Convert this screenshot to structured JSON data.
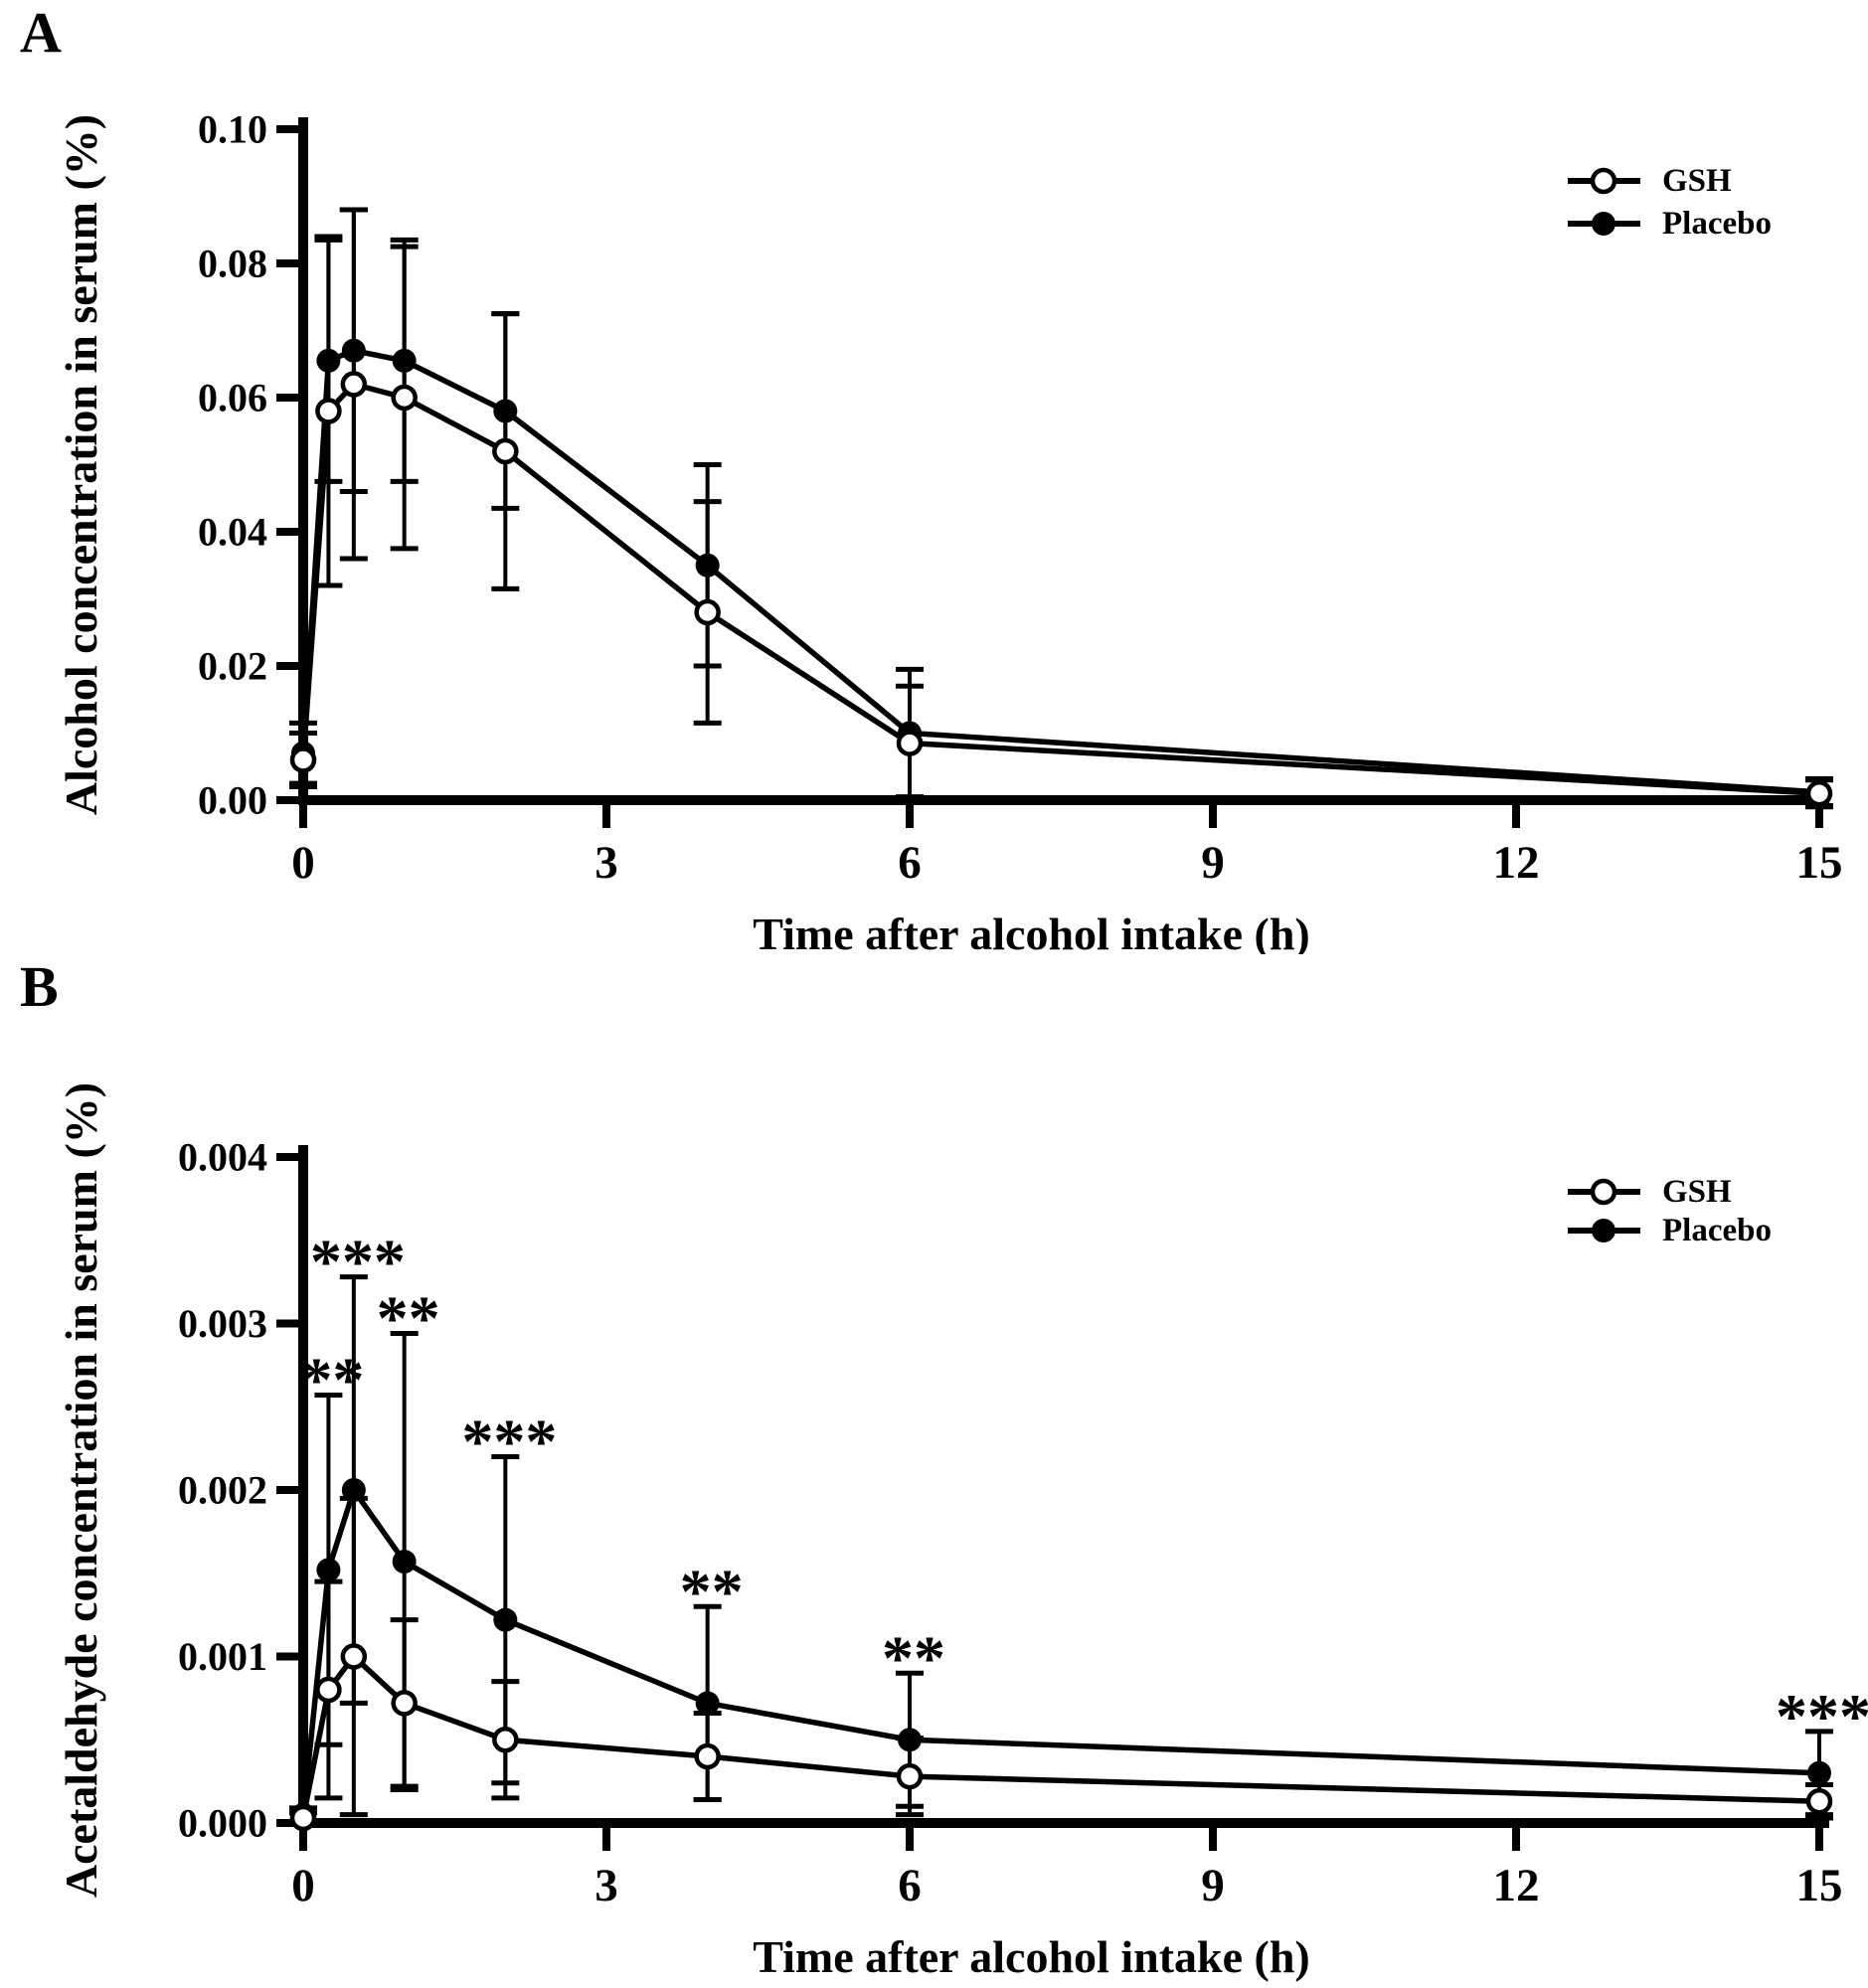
{
  "page": {
    "background": "#ffffff",
    "ink": "#000000"
  },
  "panels": [
    {
      "label": "A"
    },
    {
      "label": "B"
    }
  ],
  "chart_data": [
    {
      "type": "line",
      "panel": "A",
      "title": "",
      "xlabel": "Time after alcohol intake (h)",
      "ylabel": "Alcohol concentration in serum (%)",
      "xlim": [
        0,
        15
      ],
      "ylim": [
        0,
        0.1
      ],
      "xticks": [
        0,
        3,
        6,
        9,
        12,
        15
      ],
      "xtick_labels": [
        "0",
        "3",
        "6",
        "9",
        "12",
        "15"
      ],
      "yticks": [
        0,
        0.02,
        0.04,
        0.06,
        0.08,
        0.1
      ],
      "ytick_labels": [
        "0.00",
        "0.02",
        "0.04",
        "0.06",
        "0.08",
        "0.10"
      ],
      "grid": false,
      "x": [
        0,
        0.25,
        0.5,
        1,
        2,
        4,
        6,
        15
      ],
      "series": [
        {
          "name": "Placebo",
          "marker": "filled-circle",
          "values": [
            0.007,
            0.0655,
            0.067,
            0.0655,
            0.058,
            0.035,
            0.01,
            0.0012
          ],
          "errors": [
            0.0045,
            0.018,
            0.021,
            0.018,
            0.0145,
            0.015,
            0.0095,
            0.002
          ]
        },
        {
          "name": "GSH",
          "marker": "open-circle",
          "values": [
            0.006,
            0.058,
            0.062,
            0.06,
            0.052,
            0.028,
            0.0085,
            0.001
          ],
          "errors": [
            0.004,
            0.026,
            0.026,
            0.0225,
            0.0205,
            0.0165,
            0.0085,
            0.002
          ]
        }
      ],
      "legend": {
        "position": "top-right",
        "entries": [
          {
            "name": "GSH",
            "marker": "open-circle"
          },
          {
            "name": "Placebo",
            "marker": "filled-circle"
          }
        ]
      },
      "annotations": []
    },
    {
      "type": "line",
      "panel": "B",
      "title": "",
      "xlabel": "Time after alcohol intake (h)",
      "ylabel": "Acetaldehyde concentration in serum (%)",
      "xlim": [
        0,
        15
      ],
      "ylim": [
        0,
        0.004
      ],
      "xticks": [
        0,
        3,
        6,
        9,
        12,
        15
      ],
      "xtick_labels": [
        "0",
        "3",
        "6",
        "9",
        "12",
        "15"
      ],
      "yticks": [
        0,
        0.001,
        0.002,
        0.003,
        0.004
      ],
      "ytick_labels": [
        "0.000",
        "0.001",
        "0.002",
        "0.003",
        "0.004"
      ],
      "grid": false,
      "x": [
        0,
        0.25,
        0.5,
        1,
        2,
        4,
        6,
        15
      ],
      "series": [
        {
          "name": "Placebo",
          "marker": "filled-circle",
          "values": [
            5e-05,
            0.00152,
            0.002,
            0.00157,
            0.00122,
            0.00072,
            0.0005,
            0.0003
          ],
          "errors": [
            4e-05,
            0.00105,
            0.00128,
            0.00137,
            0.00098,
            0.00058,
            0.0004,
            0.00025
          ]
        },
        {
          "name": "GSH",
          "marker": "open-circle",
          "values": [
            3e-05,
            0.0008,
            0.001,
            0.00072,
            0.0005,
            0.0004,
            0.00028,
            0.00013
          ],
          "errors": [
            3e-05,
            0.00065,
            0.00095,
            0.0005,
            0.00035,
            0.00026,
            0.00023,
            0.0001
          ]
        }
      ],
      "legend": {
        "position": "top-right",
        "entries": [
          {
            "name": "GSH",
            "marker": "open-circle"
          },
          {
            "name": "Placebo",
            "marker": "filled-circle"
          }
        ]
      },
      "annotations": [
        {
          "x": 0.25,
          "label": "**"
        },
        {
          "x": 0.5,
          "label": "***"
        },
        {
          "x": 1,
          "label": "**"
        },
        {
          "x": 2,
          "label": "***"
        },
        {
          "x": 4,
          "label": "**"
        },
        {
          "x": 6,
          "label": "**"
        },
        {
          "x": 15,
          "label": "***"
        }
      ]
    }
  ]
}
